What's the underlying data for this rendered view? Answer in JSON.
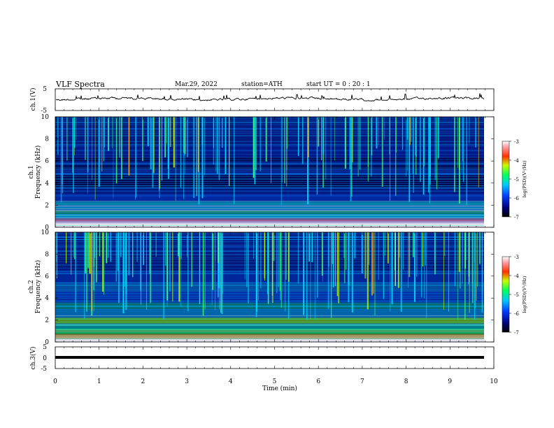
{
  "header": {
    "title": "VLF  Spectra",
    "date": "Mar.29, 2022",
    "station": "station=ATH",
    "start": "start  UT  =    0  : 20 : 1"
  },
  "chart_data": [
    {
      "type": "line",
      "name": "ch1-waveform",
      "ylabel": "ch.1(V)",
      "ylim": [
        -5,
        5
      ],
      "yticks": [
        "5",
        "-5"
      ],
      "xlim": [
        0,
        10
      ]
    },
    {
      "type": "heatmap",
      "name": "ch1-spectrogram",
      "ylabel_line1": "ch.1",
      "ylabel_line2": "Frequency  (kHz)",
      "ylim": [
        0,
        10
      ],
      "yticks": [
        "0",
        "2",
        "4",
        "6",
        "8",
        "10"
      ],
      "xlim": [
        0,
        9.8
      ],
      "colorbar": {
        "label": "log(PSD)(V²/Hz)",
        "range": [
          -7,
          -3
        ],
        "ticks": [
          "-3",
          "-4",
          "-5",
          "-6",
          "-7"
        ]
      }
    },
    {
      "type": "heatmap",
      "name": "ch2-spectrogram",
      "ylabel_line1": "ch.2",
      "ylabel_line2": "Frequency  (kHz)",
      "ylim": [
        0,
        10
      ],
      "yticks": [
        "0",
        "2",
        "4",
        "6",
        "8",
        "10"
      ],
      "xlim": [
        0,
        9.8
      ],
      "colorbar": {
        "label": "log(PSD)(V²/Hz)",
        "range": [
          -7,
          -3
        ],
        "ticks": [
          "-3",
          "-4",
          "-5",
          "-6",
          "-7"
        ]
      }
    },
    {
      "type": "line",
      "name": "ch3-waveform",
      "ylabel": "ch.3(V)",
      "ylim": [
        -5,
        5
      ],
      "yticks": [
        "5",
        "0",
        "-5"
      ],
      "xlim": [
        0,
        10
      ]
    }
  ],
  "xaxis": {
    "label": "Time  (min)",
    "range": [
      0,
      10
    ],
    "ticks": [
      "0",
      "1",
      "2",
      "3",
      "4",
      "5",
      "6",
      "7",
      "8",
      "9",
      "10"
    ]
  },
  "colors": {
    "axis": "#000000",
    "spec_background": "#000a55"
  }
}
